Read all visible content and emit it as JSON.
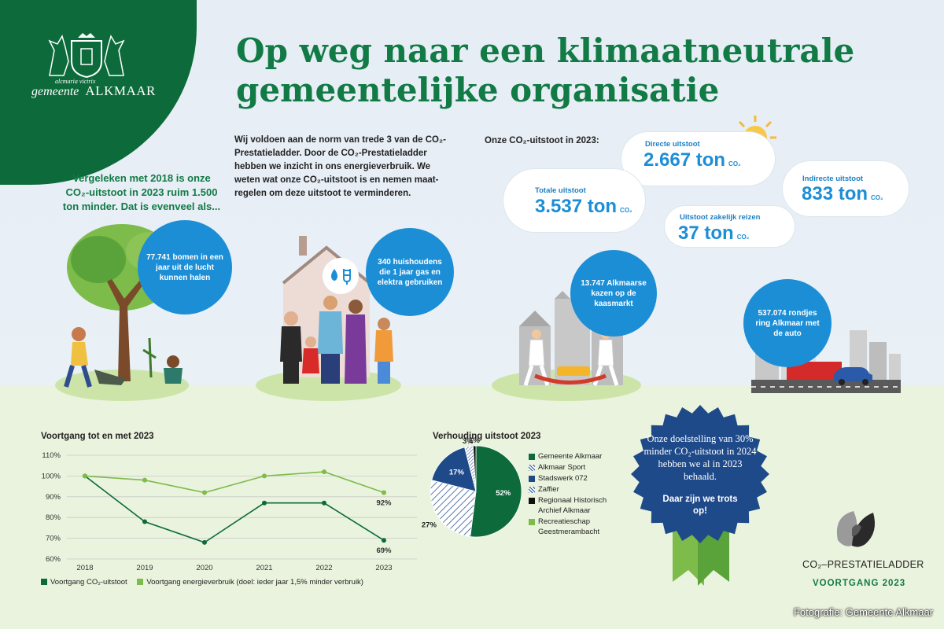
{
  "logo": {
    "motto": "alcmaria victrix",
    "name_prefix": "gemeente",
    "name": "ALKMAAR"
  },
  "title": {
    "line1": "Op weg naar een klimaatneutrale",
    "line2": "gemeentelijke organisatie"
  },
  "comparison": {
    "line1": "Vergeleken met 2018 is onze",
    "line2": "CO₂-uitstoot in 2023 ruim 1.500",
    "line3": "ton minder. Dat is evenveel als..."
  },
  "intro": {
    "text": "Wij voldoen aan de norm van trede 3 van de CO₂-Prestatieladder. Door de CO₂-Prestatieladder hebben we inzicht in ons energieverbruik. We weten wat onze CO₂-uitstoot is en nemen maat-regelen om deze uitstoot te verminderen."
  },
  "emissions": {
    "heading": "Onze CO₂-uitstoot in 2023:",
    "unit": "CO₂",
    "total": {
      "label": "Totale uitstoot",
      "value": "3.537 ton"
    },
    "direct": {
      "label": "Directe uitstoot",
      "value": "2.667 ton"
    },
    "indirect": {
      "label": "Indirecte uitstoot",
      "value": "833 ton"
    },
    "travel": {
      "label": "Uitstoot zakelijk reizen",
      "value": "37 ton"
    }
  },
  "equivalents": {
    "trees": "77.741 bomen in een jaar uit de lucht kunnen halen",
    "households": "340 huishoudens die 1 jaar gas en elektra gebruiken",
    "cheese": "13.747 Alkmaarse kazen op de kaasmarkt",
    "ring": "537.074 rondjes ring Alkmaar met de auto"
  },
  "line_chart": {
    "title": "Voortgang tot en met 2023",
    "legend_co2": "Voortgang CO₂-uitstoot",
    "legend_energy": "Voortgang energieverbruik  (doel: ieder jaar 1,5% minder verbruik)",
    "label_energy_end": "92%",
    "label_co2_end": "69%"
  },
  "pie_chart": {
    "title": "Verhouding uitstoot 2023",
    "legend": [
      "Gemeente Alkmaar",
      "Alkmaar Sport",
      "Stadswerk 072",
      "Zaffier",
      "Regionaal Historisch Archief Alkmaar",
      "Recreatieschap Geestmerambacht"
    ],
    "labels": {
      "gemeente": "52%",
      "sport": "27%",
      "stadswerk": "17%",
      "zaffier": "3%",
      "archief": "1%"
    }
  },
  "badge": {
    "text": "Onze doelstelling van 30% minder CO₂-uitstoot in 2024 hebben we al in 2023 behaald.",
    "proud": "Daar zijn we trots op!"
  },
  "ladder": {
    "name": "CO₂–PRESTATIELADDER",
    "sub": "VOORTGANG 2023"
  },
  "credit": "Fotografie: Gemeente Alkmaar",
  "colors": {
    "dark_green": "#0d6b3b",
    "title_green": "#117a45",
    "light_green": "#7dbb4a",
    "blue": "#1c8ed6",
    "navy": "#1f4a8a"
  },
  "chart_data": [
    {
      "type": "line",
      "title": "Voortgang tot en met 2023",
      "x": [
        "2018",
        "2019",
        "2020",
        "2021",
        "2022",
        "2023"
      ],
      "series": [
        {
          "name": "Voortgang CO₂-uitstoot",
          "color": "#0d6b3b",
          "values": [
            100,
            78,
            68,
            87,
            87,
            69
          ]
        },
        {
          "name": "Voortgang energieverbruik  (doel: ieder jaar 1,5% minder verbruik)",
          "color": "#7dbb4a",
          "values": [
            100,
            98,
            92,
            100,
            102,
            92
          ]
        }
      ],
      "yticks": [
        "60%",
        "70%",
        "80%",
        "90%",
        "100%",
        "110%"
      ],
      "ylim": [
        60,
        110
      ],
      "grid": "horizontal"
    },
    {
      "type": "pie",
      "title": "Verhouding uitstoot 2023",
      "slices": [
        {
          "name": "Gemeente Alkmaar",
          "value": 52,
          "color": "#0d6b3b",
          "pattern": "solid"
        },
        {
          "name": "Alkmaar Sport",
          "value": 27,
          "color": "#1f4a8a",
          "pattern": "hatch"
        },
        {
          "name": "Stadswerk 072",
          "value": 17,
          "color": "#1f4a8a",
          "pattern": "solid"
        },
        {
          "name": "Zaffier",
          "value": 3,
          "color": "#1f4a8a",
          "pattern": "hatch-dense"
        },
        {
          "name": "Regionaal Historisch Archief Alkmaar",
          "value": 1,
          "color": "#111111",
          "pattern": "solid"
        },
        {
          "name": "Recreatieschap Geestmerambacht",
          "value": 0,
          "color": "#7dbb4a",
          "pattern": "solid"
        }
      ]
    }
  ]
}
